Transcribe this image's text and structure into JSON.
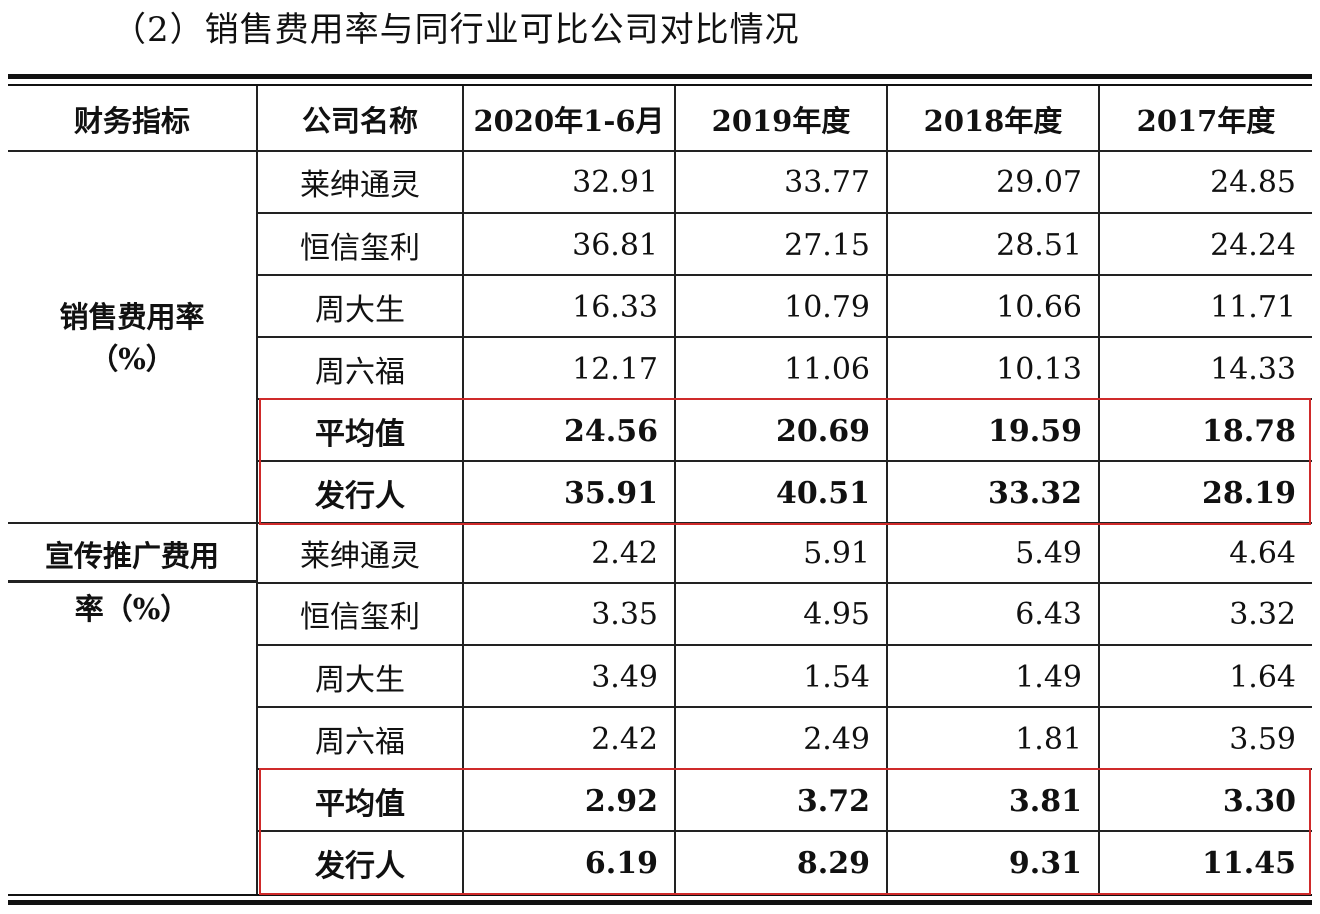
{
  "heading": "（2）销售费用率与同行业可比公司对比情况",
  "headers": [
    "财务指标",
    "公司名称",
    "2020年1-6月",
    "2019年度",
    "2018年度",
    "2017年度"
  ],
  "groups": [
    {
      "label_line1": "销售费用率",
      "label_line2": "（%）",
      "rows": [
        {
          "company": "莱绅通灵",
          "values": [
            "32.91",
            "33.77",
            "29.07",
            "24.85"
          ]
        },
        {
          "company": "恒信玺利",
          "values": [
            "36.81",
            "27.15",
            "28.51",
            "24.24"
          ]
        },
        {
          "company": "周大生",
          "values": [
            "16.33",
            "10.79",
            "10.66",
            "11.71"
          ]
        },
        {
          "company": "周六福",
          "values": [
            "12.17",
            "11.06",
            "10.13",
            "14.33"
          ]
        },
        {
          "company": "平均值",
          "values": [
            "24.56",
            "20.69",
            "19.59",
            "18.78"
          ]
        },
        {
          "company": "发行人",
          "values": [
            "35.91",
            "40.51",
            "33.32",
            "28.19"
          ]
        }
      ]
    },
    {
      "label_line1": "宣传推广费用",
      "label_line2": "率（%）",
      "rows": [
        {
          "company": "莱绅通灵",
          "values": [
            "2.42",
            "5.91",
            "5.49",
            "4.64"
          ]
        },
        {
          "company": "恒信玺利",
          "values": [
            "3.35",
            "4.95",
            "6.43",
            "3.32"
          ]
        },
        {
          "company": "周大生",
          "values": [
            "3.49",
            "1.54",
            "1.49",
            "1.64"
          ]
        },
        {
          "company": "周六福",
          "values": [
            "2.42",
            "2.49",
            "1.81",
            "3.59"
          ]
        },
        {
          "company": "平均值",
          "values": [
            "2.92",
            "3.72",
            "3.81",
            "3.30"
          ]
        },
        {
          "company": "发行人",
          "values": [
            "6.19",
            "8.29",
            "9.31",
            "11.45"
          ]
        }
      ]
    }
  ],
  "highlight_color": "#cf2a2a"
}
